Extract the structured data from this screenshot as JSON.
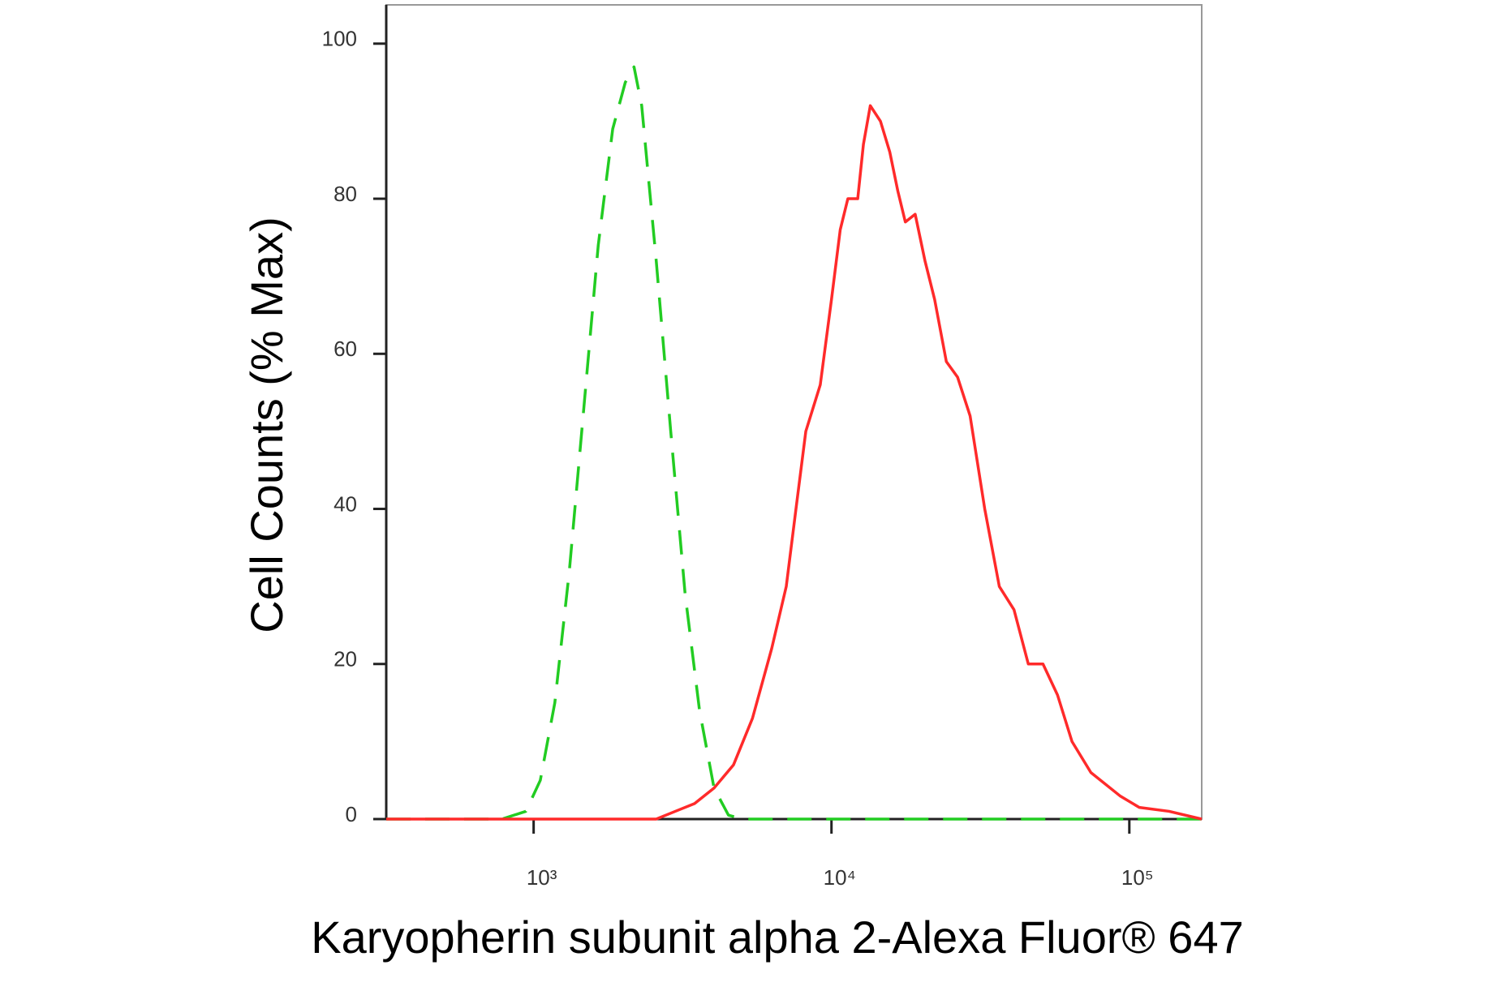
{
  "chart_data": {
    "type": "line",
    "x_label": "Karyopherin subunit alpha 2-Alexa Fluor® 647",
    "y_label": "Cell Counts (% Max)",
    "x_scale": "log",
    "xlim": [
      320,
      175000
    ],
    "xticks": [
      {
        "value": 1000,
        "label": "10³"
      },
      {
        "value": 10000,
        "label": "10⁴"
      },
      {
        "value": 100000,
        "label": "10⁵"
      }
    ],
    "ylim": [
      0,
      105
    ],
    "yticks": [
      0,
      20,
      40,
      60,
      80,
      100
    ],
    "series": [
      {
        "color": "#22cc22",
        "style": "dashed",
        "x": [
          320,
          782,
          942,
          1053,
          1178,
          1318,
          1474,
          1648,
          1843,
          2031,
          2173,
          2306,
          2580,
          2886,
          3226,
          3606,
          4034,
          4510,
          5039,
          175000
        ],
        "values": [
          0,
          0,
          1,
          5,
          15,
          32,
          53,
          74,
          89,
          95,
          97,
          92,
          72,
          50,
          29,
          14,
          4,
          0.5,
          0,
          0
        ]
      },
      {
        "color": "#ff2a2a",
        "style": "solid",
        "x": [
          320,
          2580,
          2990,
          3470,
          4034,
          4690,
          5430,
          6300,
          7050,
          7600,
          8200,
          9170,
          10000,
          10700,
          11350,
          12250,
          12800,
          13500,
          14600,
          15700,
          16700,
          17700,
          19100,
          20600,
          22200,
          24300,
          26500,
          29200,
          32700,
          36600,
          41000,
          45800,
          51300,
          57400,
          64200,
          74300,
          93000,
          108000,
          136000,
          175000
        ],
        "values": [
          0,
          0,
          1,
          2,
          4,
          7,
          13,
          22,
          30,
          40,
          50,
          56,
          67,
          76,
          80,
          80,
          87,
          92,
          90,
          86,
          81,
          77,
          78,
          72,
          67,
          59,
          57,
          52,
          40,
          30,
          27,
          20,
          20,
          16,
          10,
          6,
          3,
          1.5,
          1,
          0
        ]
      }
    ]
  }
}
